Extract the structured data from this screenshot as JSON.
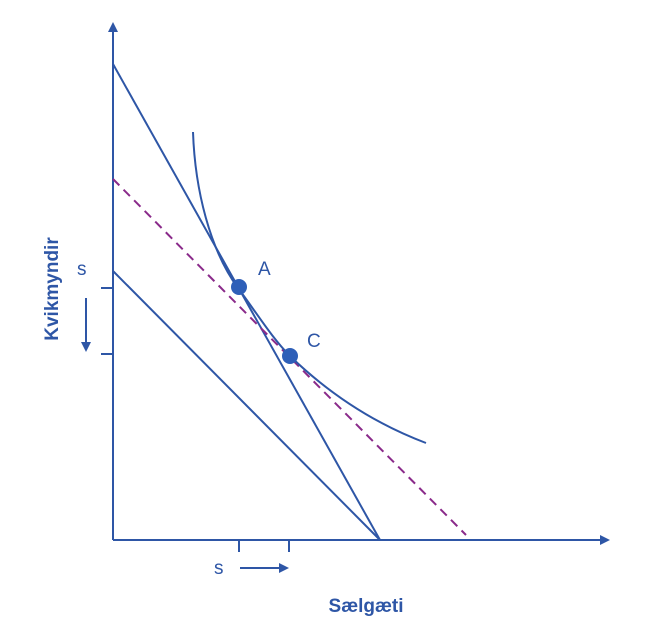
{
  "diagram": {
    "colors": {
      "line": "#2e56a6",
      "dashed": "#8a2a8a",
      "point": "#2e5fb8",
      "text": "#2e56a6"
    },
    "x_axis_label": "Sælgæti",
    "y_axis_label": "Kvikmyndir",
    "points": [
      {
        "name": "A",
        "label": "A"
      },
      {
        "name": "C",
        "label": "C"
      }
    ],
    "shift_labels": {
      "horizontal": "s",
      "vertical": "s"
    }
  }
}
